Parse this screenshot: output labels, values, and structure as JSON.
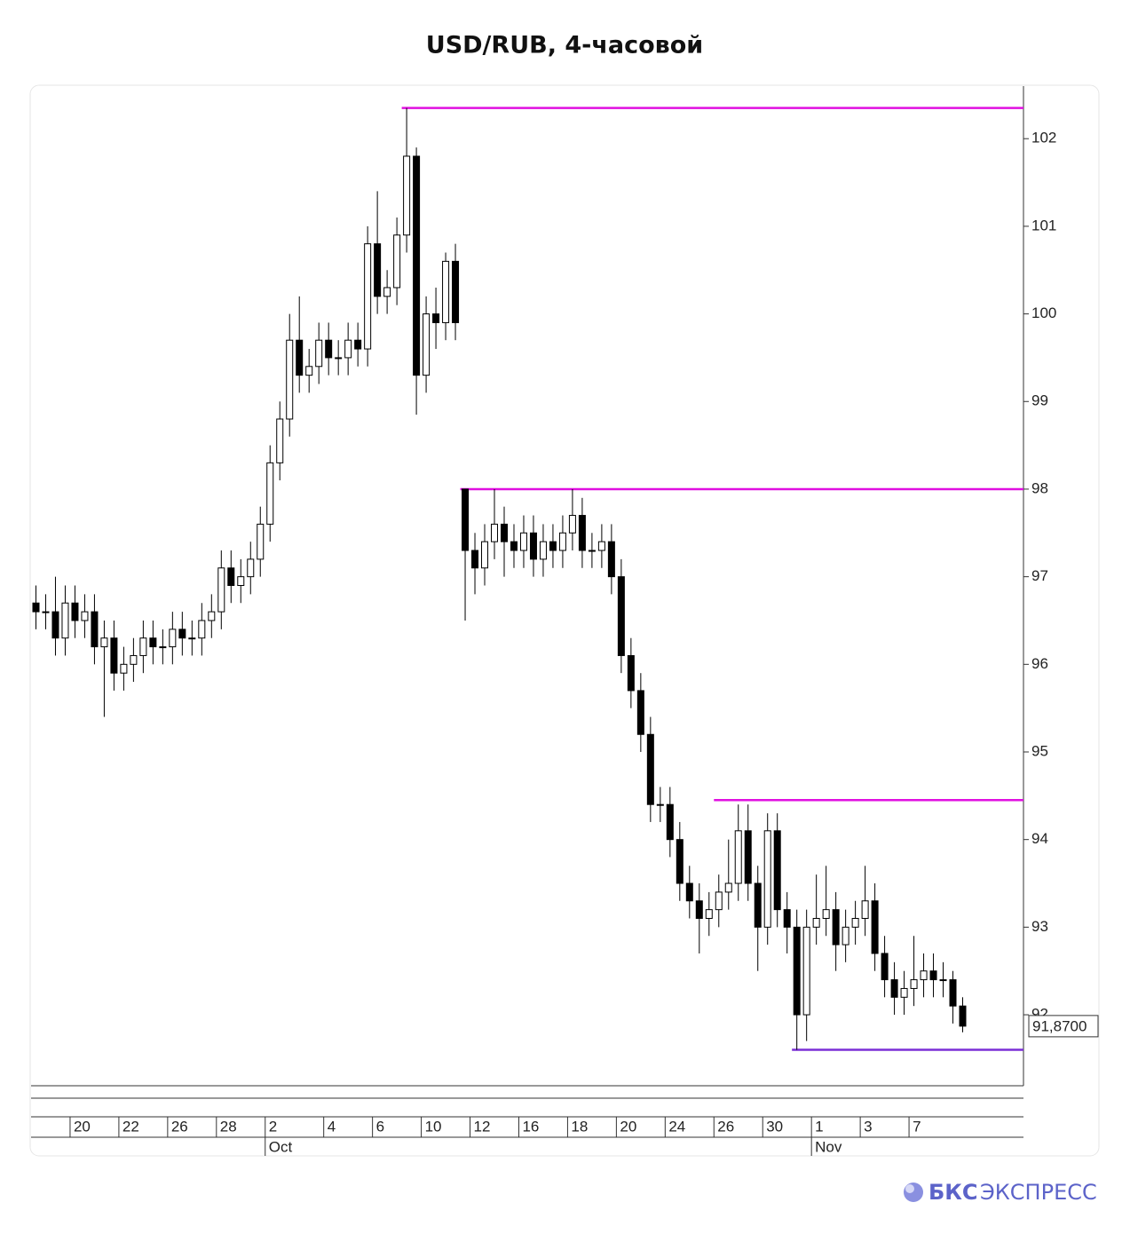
{
  "chart_data": {
    "type": "candlestick",
    "title": "USD/RUB, 4-часовой",
    "categories": [
      null,
      null,
      null,
      null,
      "20",
      null,
      null,
      null,
      null,
      "22",
      null,
      null,
      null,
      null,
      "26",
      null,
      null,
      null,
      null,
      "28",
      null,
      null,
      null,
      null,
      "2",
      null,
      null,
      null,
      null,
      null,
      "4",
      null,
      null,
      null,
      null,
      "6",
      null,
      null,
      null,
      null,
      "10",
      null,
      null,
      null,
      null,
      "12",
      null,
      null,
      null,
      null,
      "16",
      null,
      null,
      null,
      null,
      "18",
      null,
      null,
      null,
      null,
      "20",
      null,
      null,
      null,
      null,
      "24",
      null,
      null,
      null,
      null,
      "26",
      null,
      null,
      null,
      null,
      "30",
      null,
      null,
      null,
      null,
      "1",
      null,
      null,
      null,
      null,
      "3",
      null,
      null,
      null,
      null,
      "7",
      null,
      null,
      null,
      null,
      null
    ],
    "months": [
      null,
      null,
      null,
      null,
      null,
      null,
      null,
      null,
      null,
      null,
      null,
      null,
      null,
      null,
      null,
      null,
      null,
      null,
      null,
      null,
      null,
      null,
      null,
      null,
      "Oct",
      null,
      null,
      null,
      null,
      null,
      null,
      null,
      null,
      null,
      null,
      null,
      null,
      null,
      null,
      null,
      null,
      null,
      null,
      null,
      null,
      null,
      null,
      null,
      null,
      null,
      null,
      null,
      null,
      null,
      null,
      null,
      null,
      null,
      null,
      null,
      null,
      null,
      null,
      null,
      null,
      null,
      null,
      null,
      null,
      null,
      null,
      null,
      null,
      null,
      null,
      null,
      null,
      null,
      null,
      null,
      "Nov",
      null,
      null,
      null,
      null,
      null,
      null,
      null,
      null,
      null,
      null,
      null,
      null,
      null,
      null,
      null
    ],
    "open": [
      96.7,
      96.6,
      96.6,
      96.3,
      96.7,
      96.5,
      96.6,
      96.2,
      96.3,
      95.9,
      96.0,
      96.1,
      96.3,
      96.2,
      96.2,
      96.4,
      96.3,
      96.3,
      96.5,
      96.6,
      97.1,
      96.9,
      97.0,
      97.2,
      97.6,
      98.3,
      98.8,
      99.7,
      99.3,
      99.4,
      99.7,
      99.5,
      99.5,
      99.7,
      99.6,
      100.8,
      100.2,
      100.3,
      100.9,
      101.8,
      99.3,
      100.0,
      99.9,
      100.6,
      98.0,
      97.3,
      97.1,
      97.4,
      97.6,
      97.4,
      97.3,
      97.5,
      97.2,
      97.4,
      97.3,
      97.5,
      97.7,
      97.3,
      97.3,
      97.4,
      97.0,
      96.1,
      95.7,
      95.2,
      94.4,
      94.4,
      94.0,
      93.5,
      93.3,
      93.1,
      93.2,
      93.4,
      93.5,
      94.1,
      93.5,
      93.0,
      94.1,
      93.2,
      93.0,
      92.0,
      93.0,
      93.1,
      93.2,
      92.8,
      93.0,
      93.1,
      93.3,
      92.7,
      92.4,
      92.2,
      92.3,
      92.4,
      92.5,
      92.4,
      92.4,
      92.1
    ],
    "high": [
      96.9,
      96.8,
      97.0,
      96.9,
      96.9,
      96.8,
      96.8,
      96.5,
      96.5,
      96.2,
      96.3,
      96.5,
      96.5,
      96.4,
      96.6,
      96.6,
      96.5,
      96.7,
      96.8,
      97.3,
      97.3,
      97.2,
      97.4,
      97.8,
      98.5,
      99.0,
      100.0,
      100.2,
      99.6,
      99.9,
      99.9,
      99.7,
      99.9,
      99.9,
      101.0,
      101.4,
      100.5,
      101.1,
      102.35,
      101.9,
      100.2,
      100.3,
      100.7,
      100.8,
      98.0,
      97.5,
      97.6,
      98.0,
      97.8,
      97.6,
      97.7,
      97.7,
      97.6,
      97.6,
      97.7,
      98.0,
      97.9,
      97.5,
      97.6,
      97.6,
      97.2,
      96.3,
      95.9,
      95.4,
      94.6,
      94.6,
      94.2,
      93.7,
      93.5,
      93.4,
      93.6,
      94.0,
      94.4,
      94.4,
      93.7,
      94.3,
      94.3,
      93.4,
      93.2,
      93.2,
      93.6,
      93.7,
      93.4,
      93.2,
      93.3,
      93.7,
      93.5,
      92.9,
      92.6,
      92.5,
      92.9,
      92.7,
      92.7,
      92.6,
      92.5,
      92.2
    ],
    "low": [
      96.4,
      96.4,
      96.1,
      96.1,
      96.3,
      96.3,
      96.0,
      95.4,
      95.7,
      95.7,
      95.8,
      95.9,
      96.0,
      96.0,
      96.0,
      96.1,
      96.1,
      96.1,
      96.3,
      96.4,
      96.7,
      96.7,
      96.8,
      97.0,
      97.4,
      98.1,
      98.6,
      99.1,
      99.1,
      99.2,
      99.3,
      99.3,
      99.3,
      99.4,
      99.4,
      100.0,
      100.0,
      100.1,
      100.7,
      98.85,
      99.1,
      99.6,
      99.7,
      99.7,
      96.5,
      96.8,
      96.9,
      97.2,
      97.0,
      97.1,
      97.1,
      97.0,
      97.0,
      97.1,
      97.1,
      97.3,
      97.1,
      97.1,
      97.1,
      96.8,
      95.9,
      95.5,
      95.0,
      94.2,
      94.2,
      93.8,
      93.3,
      93.1,
      92.7,
      92.9,
      93.0,
      93.2,
      93.3,
      93.3,
      92.5,
      92.8,
      93.0,
      92.7,
      91.6,
      91.7,
      92.8,
      92.9,
      92.5,
      92.6,
      92.8,
      92.9,
      92.5,
      92.2,
      92.0,
      92.0,
      92.1,
      92.2,
      92.2,
      92.2,
      91.9,
      91.8
    ],
    "close": [
      96.6,
      96.6,
      96.3,
      96.7,
      96.5,
      96.6,
      96.2,
      96.3,
      95.9,
      96.0,
      96.1,
      96.3,
      96.2,
      96.2,
      96.4,
      96.3,
      96.3,
      96.5,
      96.6,
      97.1,
      96.9,
      97.0,
      97.2,
      97.6,
      98.3,
      98.8,
      99.7,
      99.3,
      99.4,
      99.7,
      99.5,
      99.5,
      99.7,
      99.6,
      100.8,
      100.2,
      100.3,
      100.9,
      101.8,
      99.3,
      100.0,
      99.9,
      100.6,
      99.9,
      97.3,
      97.1,
      97.4,
      97.6,
      97.4,
      97.3,
      97.5,
      97.2,
      97.4,
      97.3,
      97.5,
      97.7,
      97.3,
      97.3,
      97.4,
      97.0,
      96.1,
      95.7,
      95.2,
      94.4,
      94.4,
      94.0,
      93.5,
      93.3,
      93.1,
      93.2,
      93.4,
      93.5,
      94.1,
      93.5,
      93.0,
      94.1,
      93.2,
      93.0,
      92.0,
      93.0,
      93.1,
      93.2,
      92.8,
      93.0,
      93.1,
      93.3,
      92.7,
      92.4,
      92.2,
      92.3,
      92.4,
      92.5,
      92.4,
      92.4,
      92.1,
      91.87
    ],
    "levels": [
      {
        "value": 102.35,
        "from": 38,
        "color": "#e010e0"
      },
      {
        "value": 98.0,
        "from": 44,
        "color": "#e010e0"
      },
      {
        "value": 94.45,
        "from": 70,
        "color": "#e010e0"
      },
      {
        "value": 91.6,
        "from": 78,
        "color": "#7b2fd6"
      }
    ],
    "last_price": {
      "value": 91.87,
      "label": "91,8700"
    },
    "ylim": [
      91.2,
      102.6
    ],
    "yticks": [
      92,
      93,
      94,
      95,
      96,
      97,
      98,
      99,
      100,
      101,
      102
    ]
  },
  "brand": {
    "bold": "БКС",
    "light": "ЭКСПРЕСС"
  }
}
